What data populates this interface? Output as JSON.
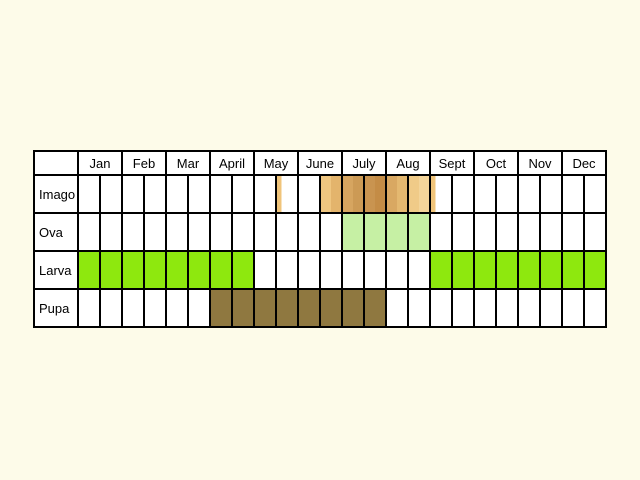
{
  "months": [
    "Jan",
    "Feb",
    "Mar",
    "April",
    "May",
    "June",
    "July",
    "Aug",
    "Sept",
    "Oct",
    "Nov",
    "Dec"
  ],
  "stages": [
    {
      "name": "Imago",
      "segments": [
        {
          "from": 9.0,
          "to": 9.25,
          "color": "#f0c47a"
        },
        {
          "from": 11.0,
          "to": 11.5,
          "color": "#efc680"
        },
        {
          "from": 11.5,
          "to": 12.0,
          "color": "#e3b46c"
        },
        {
          "from": 12.0,
          "to": 12.5,
          "color": "#d6a560"
        },
        {
          "from": 12.5,
          "to": 13.0,
          "color": "#cc9a55"
        },
        {
          "from": 13.0,
          "to": 13.5,
          "color": "#c99450"
        },
        {
          "from": 13.5,
          "to": 14.0,
          "color": "#c48c46"
        },
        {
          "from": 14.0,
          "to": 14.5,
          "color": "#d9a862"
        },
        {
          "from": 14.5,
          "to": 15.0,
          "color": "#e4b870"
        },
        {
          "from": 15.0,
          "to": 15.5,
          "color": "#f0cb88"
        },
        {
          "from": 15.5,
          "to": 16.0,
          "color": "#f4d59a"
        },
        {
          "from": 16.0,
          "to": 16.25,
          "color": "#f0c47a"
        }
      ]
    },
    {
      "name": "Ova",
      "segments": [
        {
          "from": 12.0,
          "to": 16.0,
          "color": "#c6f0a4"
        }
      ]
    },
    {
      "name": "Larva",
      "segments": [
        {
          "from": 0,
          "to": 8.0,
          "color": "#8ee80e"
        },
        {
          "from": 16.0,
          "to": 24.0,
          "color": "#8ee80e"
        }
      ]
    },
    {
      "name": "Pupa",
      "segments": [
        {
          "from": 6.0,
          "to": 14.0,
          "color": "#8f7840"
        }
      ]
    }
  ]
}
